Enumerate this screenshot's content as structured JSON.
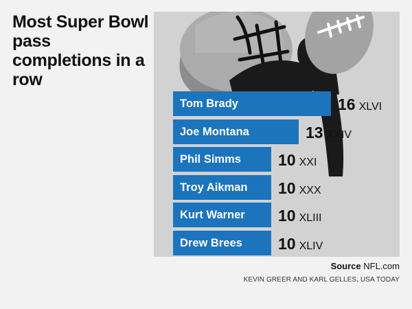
{
  "chart_data": {
    "type": "bar",
    "orientation": "horizontal",
    "title": "Most Super Bowl pass completions in a row",
    "categories": [
      "Tom Brady",
      "Joe Montana",
      "Phil Simms",
      "Troy Aikman",
      "Kurt Warner",
      "Drew Brees"
    ],
    "values": [
      16,
      13,
      10,
      10,
      10,
      10
    ],
    "super_bowls": [
      "XLVI",
      "XXIV",
      "XXI",
      "XXX",
      "XLIII",
      "XLIV"
    ],
    "bar_color": "#1c74bd",
    "panel_color": "#d2d2d2",
    "grid": false
  },
  "footer": {
    "source_label": "Source",
    "source_value": "NFL.com",
    "credit": "KEVIN GREER AND KARL GELLES, USA TODAY"
  }
}
